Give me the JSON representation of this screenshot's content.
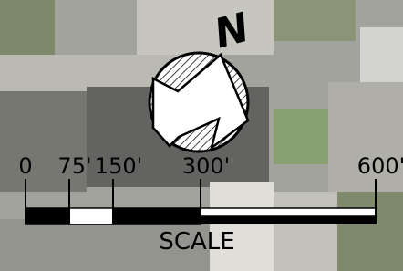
{
  "north_arrow": {
    "label": "N"
  },
  "scale_bar": {
    "title": "SCALE",
    "range": [
      0,
      600
    ],
    "ticks": [
      {
        "value": 0,
        "label": "0"
      },
      {
        "value": 75,
        "label": "75'"
      },
      {
        "value": 150,
        "label": "150'"
      },
      {
        "value": 300,
        "label": "300'"
      },
      {
        "value": 600,
        "label": "600'"
      }
    ]
  }
}
